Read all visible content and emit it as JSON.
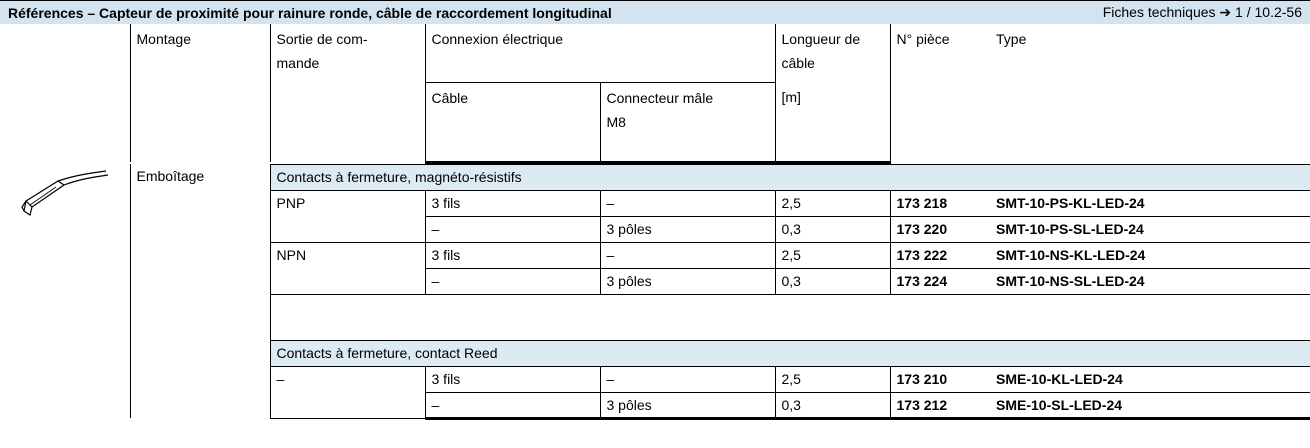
{
  "header": {
    "title": "Références – Capteur de proximité pour rainure ronde, câble de raccordement longitudinal",
    "reference": "Fiches techniques ➔ 1 / 10.2-56"
  },
  "columns": {
    "montage": "Montage",
    "sortie": "Sortie de com-\nmande",
    "connexion": "Connexion électrique",
    "cable": "Câble",
    "connecteur": "Connecteur mâle\nM8",
    "longueur": "Longueur de\ncâble",
    "unit": "[m]",
    "piece": "N° pièce",
    "type": "Type"
  },
  "table": {
    "montage": "Emboîtage",
    "groups": [
      {
        "heading": "Contacts à fermeture, magnéto-résistifs",
        "outputs": [
          {
            "sortie": "PNP",
            "rows": [
              {
                "cable": "3 fils",
                "connecteur": "–",
                "longueur": "2,5",
                "piece": "173 218",
                "type": "SMT-10-PS-KL-LED-24"
              },
              {
                "cable": "–",
                "connecteur": "3 pôles",
                "longueur": "0,3",
                "piece": "173 220",
                "type": "SMT-10-PS-SL-LED-24"
              }
            ]
          },
          {
            "sortie": "NPN",
            "rows": [
              {
                "cable": "3 fils",
                "connecteur": "–",
                "longueur": "2,5",
                "piece": "173 222",
                "type": "SMT-10-NS-KL-LED-24"
              },
              {
                "cable": "–",
                "connecteur": "3 pôles",
                "longueur": "0,3",
                "piece": "173 224",
                "type": "SMT-10-NS-SL-LED-24"
              }
            ]
          }
        ]
      },
      {
        "heading": "Contacts à fermeture, contact Reed",
        "outputs": [
          {
            "sortie": "–",
            "rows": [
              {
                "cable": "3 fils",
                "connecteur": "–",
                "longueur": "2,5",
                "piece": "173 210",
                "type": "SME-10-KL-LED-24"
              },
              {
                "cable": "–",
                "connecteur": "3 pôles",
                "longueur": "0,3",
                "piece": "173 212",
                "type": "SME-10-SL-LED-24"
              }
            ]
          }
        ]
      }
    ]
  }
}
